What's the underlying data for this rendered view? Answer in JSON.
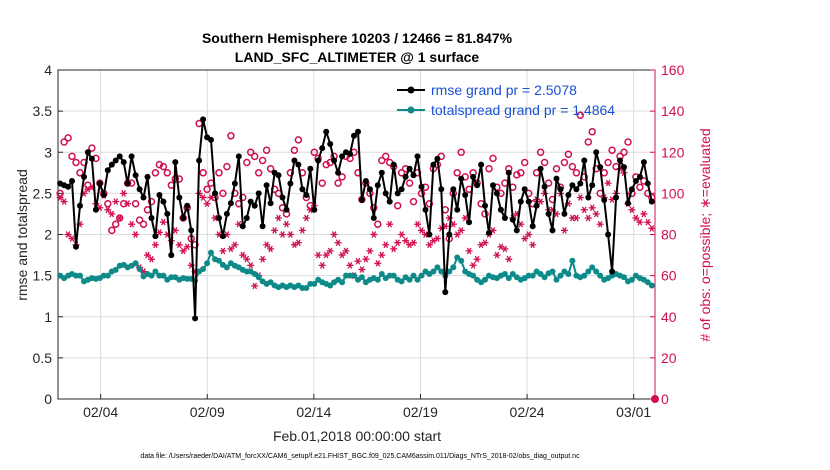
{
  "chart_data": {
    "type": "line",
    "title_line1": "Southern Hemisphere 10203 / 12466 = 81.847%",
    "title_line2": "LAND_SFC_ALTIMETER @ 1 surface",
    "xlabel": "Feb.01,2018 00:00:00 start",
    "ylabel_left": "rmse and totalspread",
    "ylabel_right": "# of obs: o=possible; ∗=evaluated",
    "footnote": "data file: /Users/raeder/DAI/ATM_forcXX/CAM6_setup/f.e21.FHIST_BGC.f09_025.CAM6assim.011/Diags_NTrS_2018-02/obs_diag_output.nc",
    "xlim": [
      1,
      29
    ],
    "ylim_left": [
      0,
      4
    ],
    "ylim_right": [
      0,
      160
    ],
    "x_ticks": [
      3,
      8,
      13,
      18,
      23,
      28
    ],
    "x_tick_labels": [
      "02/04",
      "02/09",
      "02/14",
      "02/19",
      "02/24",
      "03/01"
    ],
    "y_ticks_left": [
      "0",
      "0.5",
      "1",
      "1.5",
      "2",
      "2.5",
      "3",
      "3.5",
      "4"
    ],
    "y_ticks_right": [
      "0",
      "20",
      "40",
      "60",
      "80",
      "100",
      "120",
      "140",
      "160"
    ],
    "colors": {
      "rmse": "#000000",
      "spread": "#0e8a89",
      "obs": "#d0104c",
      "legend_text": "#1a4fd6",
      "grid": "#dcdcdc"
    },
    "series": [
      {
        "name": "rmse",
        "legend": "rmse grand pr = 2.5078",
        "color": "#000000",
        "values": [
          2.62,
          2.6,
          2.58,
          2.65,
          1.85,
          2.35,
          2.7,
          3.0,
          2.92,
          2.3,
          2.62,
          2.48,
          2.78,
          2.85,
          2.9,
          2.95,
          2.88,
          2.62,
          2.95,
          2.72,
          2.55,
          2.45,
          2.7,
          2.2,
          1.98,
          2.48,
          2.4,
          2.25,
          1.75,
          2.88,
          2.45,
          2.2,
          2.35,
          2.05,
          0.98,
          2.9,
          3.4,
          3.18,
          3.15,
          2.5,
          2.2,
          1.98,
          2.25,
          2.38,
          2.62,
          2.95,
          2.1,
          2.2,
          2.4,
          2.35,
          2.5,
          2.1,
          2.6,
          2.38,
          2.75,
          2.72,
          2.45,
          2.3,
          2.62,
          2.9,
          2.85,
          2.55,
          2.48,
          2.8,
          2.3,
          2.9,
          3.05,
          3.25,
          3.1,
          2.9,
          2.75,
          2.95,
          3.0,
          2.98,
          3.2,
          3.25,
          2.42,
          2.65,
          2.55,
          2.2,
          2.6,
          2.75,
          2.5,
          2.4,
          2.85,
          2.5,
          2.55,
          2.7,
          2.8,
          2.72,
          2.95,
          2.58,
          2.3,
          2.0,
          2.85,
          2.92,
          2.55,
          1.3,
          2.0,
          2.55,
          2.3,
          2.68,
          2.48,
          2.15,
          2.7,
          2.6,
          2.85,
          2.35,
          2.02,
          2.6,
          2.5,
          2.3,
          2.2,
          2.75,
          2.18,
          2.05,
          2.4,
          2.55,
          2.4,
          2.1,
          2.35,
          2.8,
          2.58,
          2.25,
          2.05,
          2.68,
          2.55,
          2.25,
          2.48,
          2.6,
          2.55,
          2.62,
          2.9,
          2.45,
          2.6,
          3.0,
          2.82,
          2.42,
          2.0,
          1.55,
          2.45,
          2.9,
          2.82,
          2.38,
          2.55,
          2.65,
          2.7,
          2.88,
          2.62,
          2.4
        ]
      },
      {
        "name": "totalspread",
        "legend": "totalspread grand pr = 1.4864",
        "color": "#0e8a89",
        "values": [
          1.5,
          1.47,
          1.5,
          1.52,
          1.5,
          1.5,
          1.43,
          1.45,
          1.47,
          1.46,
          1.47,
          1.5,
          1.5,
          1.55,
          1.57,
          1.62,
          1.63,
          1.6,
          1.62,
          1.65,
          1.58,
          1.49,
          1.52,
          1.5,
          1.55,
          1.5,
          1.5,
          1.45,
          1.48,
          1.48,
          1.45,
          1.47,
          1.46,
          1.46,
          1.44,
          1.55,
          1.58,
          1.65,
          1.78,
          1.7,
          1.68,
          1.63,
          1.6,
          1.65,
          1.62,
          1.6,
          1.57,
          1.55,
          1.55,
          1.52,
          1.48,
          1.43,
          1.4,
          1.42,
          1.38,
          1.36,
          1.38,
          1.36,
          1.38,
          1.36,
          1.38,
          1.35,
          1.35,
          1.4,
          1.4,
          1.45,
          1.42,
          1.4,
          1.38,
          1.42,
          1.45,
          1.42,
          1.5,
          1.5,
          1.5,
          1.45,
          1.48,
          1.42,
          1.45,
          1.47,
          1.45,
          1.52,
          1.47,
          1.5,
          1.5,
          1.45,
          1.43,
          1.48,
          1.45,
          1.5,
          1.45,
          1.5,
          1.55,
          1.52,
          1.55,
          1.6,
          1.55,
          1.5,
          1.55,
          1.6,
          1.72,
          1.68,
          1.55,
          1.52,
          1.5,
          1.45,
          1.42,
          1.45,
          1.5,
          1.48,
          1.47,
          1.5,
          1.52,
          1.47,
          1.52,
          1.48,
          1.45,
          1.47,
          1.5,
          1.5,
          1.55,
          1.52,
          1.48,
          1.53,
          1.55,
          1.45,
          1.5,
          1.55,
          1.52,
          1.68,
          1.5,
          1.48,
          1.5,
          1.55,
          1.6,
          1.55,
          1.5,
          1.45,
          1.47,
          1.5,
          1.52,
          1.5,
          1.48,
          1.43,
          1.45,
          1.5,
          1.47,
          1.45,
          1.42,
          1.38
        ]
      },
      {
        "name": "obs possible",
        "marker": "o",
        "color": "#d0104c",
        "values": [
          100,
          125,
          127,
          118,
          115,
          110,
          115,
          104,
          122,
          117,
          105,
          100,
          95,
          82,
          85,
          88,
          95,
          105,
          105,
          95,
          87,
          85,
          92,
          96,
          110,
          114,
          113,
          110,
          104,
          107,
          107,
          88,
          93,
          78,
          75,
          134,
          110,
          102,
          105,
          98,
          110,
          100,
          113,
          128,
          100,
          95,
          98,
          115,
          120,
          118,
          110,
          116,
          121,
          112,
          102,
          100,
          93,
          90,
          110,
          121,
          126,
          110,
          98,
          94,
          120,
          117,
          105,
          114,
          115,
          118,
          105,
          108,
          118,
          117,
          120,
          110,
          97,
          105,
          100,
          93,
          85,
          116,
          118,
          115,
          113,
          94,
          110,
          112,
          105,
          96,
          110,
          100,
          103,
          95,
          112,
          114,
          118,
          92,
          78,
          100,
          110,
          120,
          108,
          102,
          110,
          105,
          95,
          90,
          112,
          117,
          103,
          100,
          105,
          112,
          103,
          109,
          110,
          115,
          100,
          95,
          110,
          120,
          115,
          105,
          97,
          112,
          103,
          115,
          119,
          113,
          110,
          138,
          108,
          125,
          130,
          112,
          100,
          110,
          115,
          121,
          113,
          118,
          120,
          125,
          100,
          108,
          103,
          106,
          100,
          98
        ]
      },
      {
        "name": "obs evaluated",
        "marker": "*",
        "color": "#d0104c",
        "values": [
          98,
          96,
          80,
          78,
          75,
          85,
          100,
          102,
          103,
          95,
          93,
          99,
          92,
          90,
          96,
          88,
          100,
          95,
          85,
          80,
          64,
          62,
          70,
          68,
          75,
          81,
          86,
          80,
          77,
          82,
          75,
          72,
          74,
          65,
          62,
          100,
          98,
          95,
          98,
          88,
          80,
          72,
          80,
          73,
          75,
          85,
          70,
          68,
          65,
          55,
          60,
          68,
          75,
          73,
          82,
          88,
          80,
          85,
          80,
          75,
          76,
          82,
          88,
          92,
          94,
          70,
          65,
          70,
          72,
          80,
          76,
          70,
          72,
          65,
          60,
          67,
          63,
          68,
          72,
          80,
          66,
          70,
          75,
          85,
          73,
          76,
          80,
          77,
          75,
          76,
          85,
          82,
          80,
          75,
          77,
          78,
          83,
          84,
          88,
          85,
          80,
          82,
          88,
          72,
          65,
          68,
          75,
          76,
          80,
          82,
          70,
          74,
          73,
          68,
          88,
          90,
          85,
          78,
          80,
          75,
          97,
          96,
          100,
          92,
          92,
          90,
          100,
          82,
          95,
          88,
          88,
          98,
          92,
          88,
          93,
          90,
          85,
          98,
          105,
          97,
          100,
          112,
          110,
          95,
          92,
          88,
          86,
          90,
          86,
          83
        ]
      }
    ],
    "obs_zero_marker": {
      "x": 29,
      "y": 0
    }
  }
}
